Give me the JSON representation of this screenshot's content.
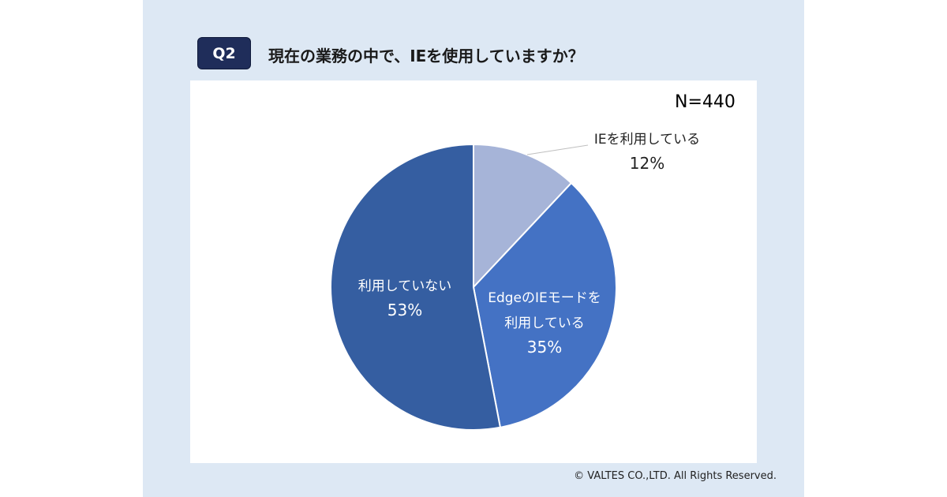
{
  "header": {
    "badge": "Q2",
    "question": "現在の業務の中で、IEを使用していますか？"
  },
  "chart_data": {
    "type": "pie",
    "sample_size": "N=440",
    "slices": [
      {
        "label": [
          "IEを利用している"
        ],
        "value": 12,
        "pct_label": "12%",
        "color": "#a6b4d8"
      },
      {
        "label": [
          "EdgeのIEモードを",
          "利用している"
        ],
        "value": 35,
        "pct_label": "35%",
        "color": "#4472c4"
      },
      {
        "label": [
          "利用していない"
        ],
        "value": 53,
        "pct_label": "53%",
        "color": "#355ea1"
      }
    ]
  },
  "footer": {
    "copyright": "© VALTES CO.,LTD. All Rights Reserved."
  }
}
